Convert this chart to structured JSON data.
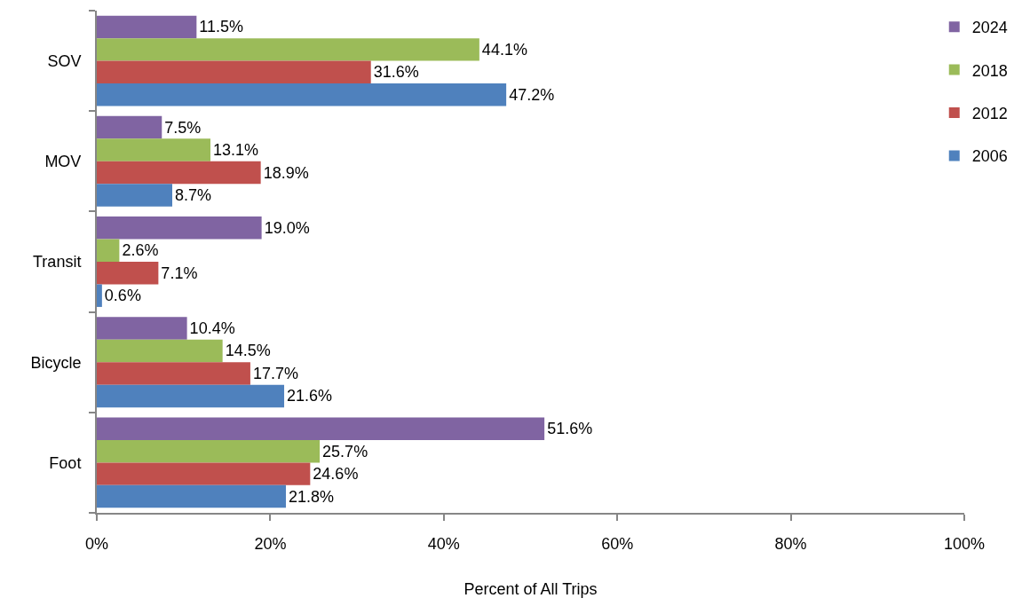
{
  "chart_data": {
    "type": "bar",
    "orientation": "horizontal",
    "xlabel": "Percent of All Trips",
    "categories": [
      "SOV",
      "MOV",
      "Transit",
      "Bicycle",
      "Foot"
    ],
    "xlim": [
      0,
      100
    ],
    "xticks": [
      {
        "value": 0,
        "label": "0%"
      },
      {
        "value": 20,
        "label": "20%"
      },
      {
        "value": 40,
        "label": "40%"
      },
      {
        "value": 60,
        "label": "60%"
      },
      {
        "value": 80,
        "label": "80%"
      },
      {
        "value": 100,
        "label": "100%"
      }
    ],
    "grid": false,
    "legend": "top right",
    "series": [
      {
        "name": "2024",
        "color": "#8064a2",
        "values": [
          11.5,
          7.5,
          19.0,
          10.4,
          51.6
        ],
        "value_labels": [
          "11.5%",
          "7.5%",
          "19.0%",
          "10.4%",
          "51.6%"
        ]
      },
      {
        "name": "2018",
        "color": "#9bbb59",
        "values": [
          44.1,
          13.1,
          2.6,
          14.5,
          25.7
        ],
        "value_labels": [
          "44.1%",
          "13.1%",
          "2.6%",
          "14.5%",
          "25.7%"
        ]
      },
      {
        "name": "2012",
        "color": "#c0504d",
        "values": [
          31.6,
          18.9,
          7.1,
          17.7,
          24.6
        ],
        "value_labels": [
          "31.6%",
          "18.9%",
          "7.1%",
          "17.7%",
          "24.6%"
        ]
      },
      {
        "name": "2006",
        "color": "#4f81bd",
        "values": [
          47.2,
          8.7,
          0.6,
          21.6,
          21.8
        ],
        "value_labels": [
          "47.2%",
          "8.7%",
          "0.6%",
          "21.6%",
          "21.8%"
        ]
      }
    ]
  }
}
